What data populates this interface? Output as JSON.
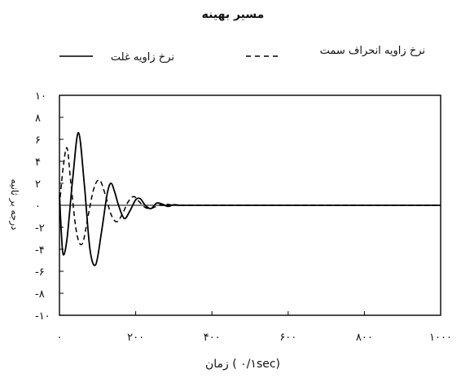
{
  "chart_data": {
    "type": "line",
    "title": "مسیر بهینه",
    "xlabel": "زمان ( ۰/۱sec)",
    "ylabel": "درجه بر ثانیه",
    "xlim": [
      0,
      1000
    ],
    "ylim": [
      -10,
      10
    ],
    "x_ticks": [
      0,
      200,
      400,
      600,
      800,
      1000
    ],
    "x_tick_labels": [
      "۰",
      "۲۰۰",
      "۴۰۰",
      "۶۰۰",
      "۸۰۰",
      "۱۰۰۰"
    ],
    "y_ticks": [
      10,
      8,
      6,
      4,
      2,
      0,
      -2,
      -4,
      -6,
      -8,
      -10
    ],
    "y_tick_labels": [
      "۱۰",
      "۸",
      "۶",
      "۴",
      "۲",
      "۰",
      "-۲",
      "-۴",
      "-۶",
      "-۸",
      "-۱۰"
    ],
    "grid": false,
    "legend_position": "top",
    "series": [
      {
        "name": "نرخ زاویه غلت",
        "style": "solid",
        "color": "#000000",
        "x": [
          0,
          5,
          10,
          20,
          35,
          50,
          65,
          80,
          95,
          110,
          125,
          135,
          145,
          155,
          170,
          185,
          200,
          212,
          225,
          240,
          255,
          270,
          285,
          300,
          315,
          330,
          345,
          360,
          1000
        ],
        "y": [
          1.0,
          -2.5,
          -4.5,
          -3.0,
          2.5,
          6.6,
          2.0,
          -4.0,
          -5.4,
          -2.5,
          1.0,
          2.0,
          1.2,
          0.0,
          -1.2,
          -0.5,
          0.5,
          0.6,
          0.0,
          -0.3,
          0.2,
          0.1,
          -0.1,
          0.05,
          0.0,
          0.0,
          0.0,
          0.0,
          0.0
        ]
      },
      {
        "name": "نرخ زاویه انحراف سمت",
        "style": "dashed",
        "color": "#000000",
        "x": [
          0,
          10,
          20,
          30,
          45,
          60,
          75,
          90,
          105,
          120,
          135,
          150,
          165,
          180,
          195,
          210,
          225,
          240,
          260,
          280,
          300,
          320,
          1000
        ],
        "y": [
          0.0,
          3.5,
          5.2,
          2.0,
          -2.5,
          -3.5,
          -1.0,
          1.5,
          2.3,
          1.0,
          -0.8,
          -1.5,
          -0.8,
          0.3,
          0.8,
          0.3,
          -0.2,
          -0.3,
          0.0,
          0.1,
          0.0,
          0.0,
          0.0
        ]
      }
    ]
  }
}
